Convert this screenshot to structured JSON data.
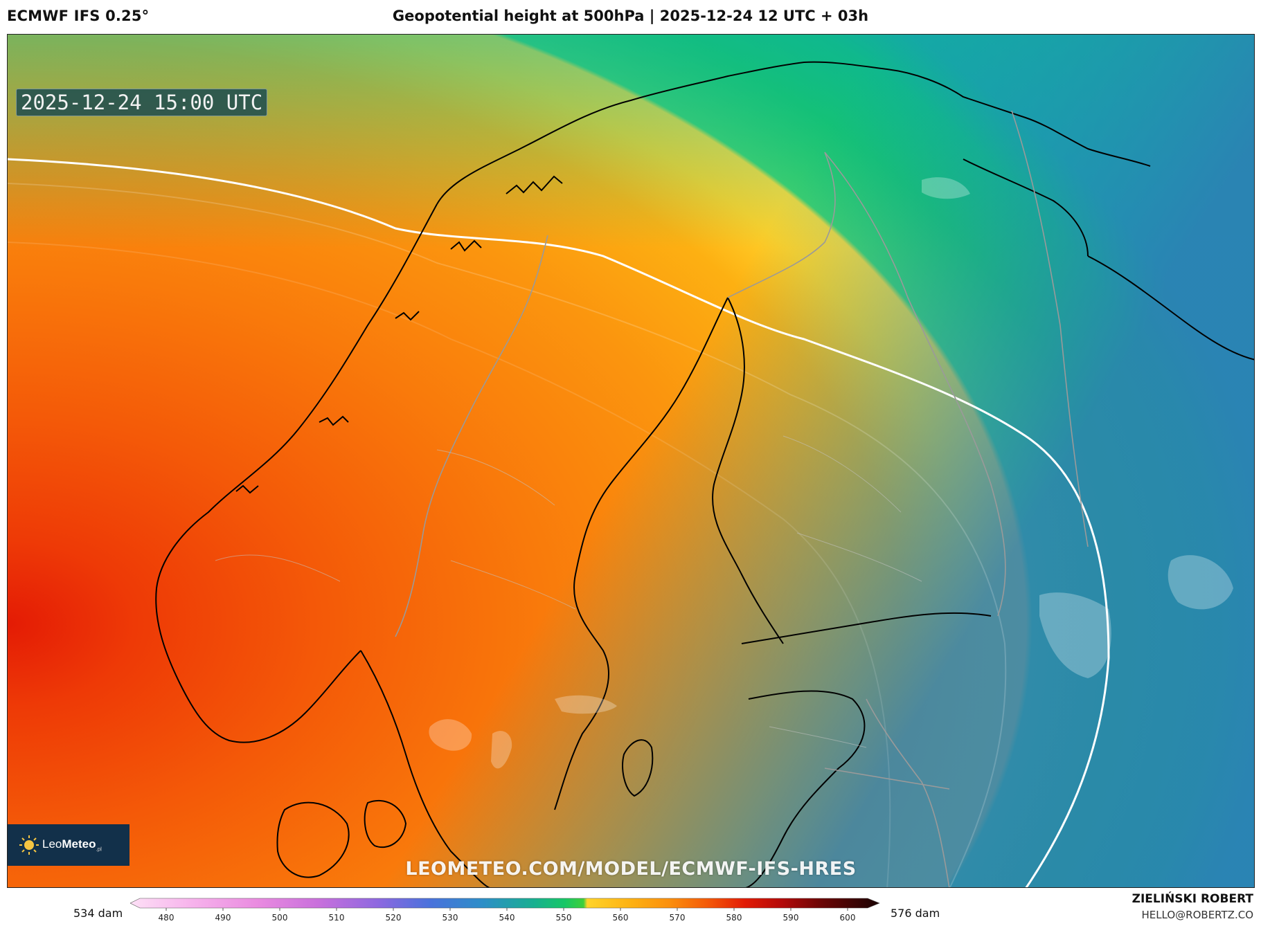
{
  "header": {
    "model": "ECMWF IFS 0.25°",
    "title": "Geopotential height at 500hPa | 2025-12-24 12 UTC + 03h"
  },
  "map": {
    "valid_time": "2025-12-24 15:00 UTC",
    "watermark": "LEOMETEO.COM/MODEL/ECMWF-IFS-HRES",
    "region": "Scandinavia and Baltic region",
    "logo": {
      "name": "LeoMeteo",
      "part1": "Leo",
      "part2": "Meteo",
      "suffix": ".pl"
    }
  },
  "colorbar": {
    "min_label": "534 dam",
    "max_label": "576 dam",
    "ticks": [
      "480",
      "490",
      "500",
      "510",
      "520",
      "530",
      "540",
      "550",
      "560",
      "570",
      "580",
      "590",
      "600"
    ]
  },
  "footer": {
    "author": "ZIELIŃSKI ROBERT",
    "contact": "HELLO@ROBERTZ.CO"
  }
}
